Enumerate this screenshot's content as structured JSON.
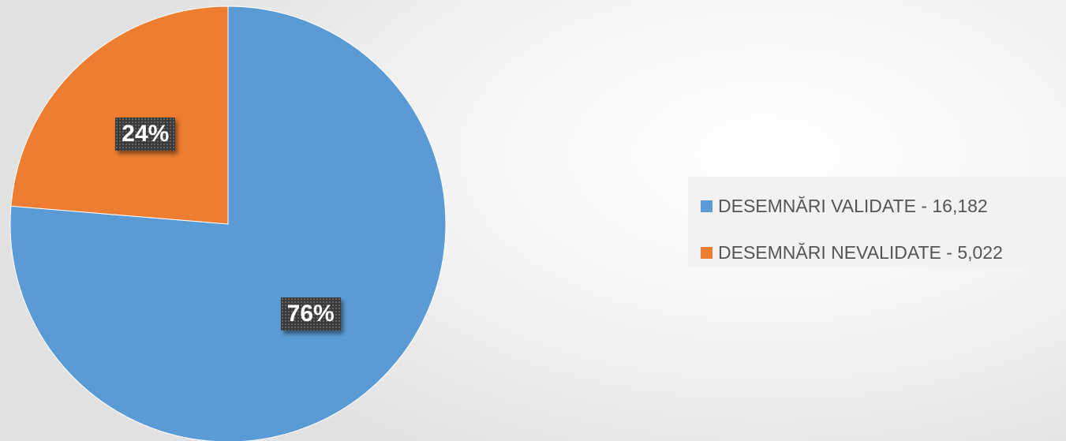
{
  "chart_data": {
    "type": "pie",
    "title": "",
    "series": [
      {
        "name": "DESEMNĂRI VALIDATE",
        "value": 16182,
        "label": "76%",
        "legend": "DESEMNĂRI VALIDATE - 16,182",
        "color": "#5b9bd5"
      },
      {
        "name": "DESEMNĂRI NEVALIDATE",
        "value": 5022,
        "label": "24%",
        "legend": "DESEMNĂRI NEVALIDATE - 5,022",
        "color": "#ed7d31"
      }
    ],
    "start_angle_deg": 0,
    "direction": "clockwise",
    "legend_position": "right"
  }
}
